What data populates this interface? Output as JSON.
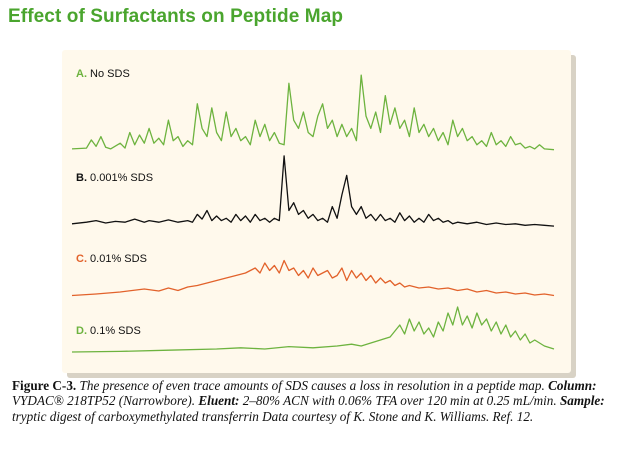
{
  "page": {
    "title": "Effect of Surfactants on Peptide Map"
  },
  "chart_data": {
    "type": "line",
    "xlabel": "",
    "ylabel": "",
    "x_range": [
      0,
      100
    ],
    "y_range": [
      0,
      1
    ],
    "grid": false,
    "legend": "none",
    "series": [
      {
        "name": "No SDS",
        "letter": "A.",
        "rest": "No SDS",
        "color": "#6db33f",
        "points": [
          [
            0,
            0.05
          ],
          [
            3,
            0.06
          ],
          [
            4,
            0.16
          ],
          [
            5,
            0.08
          ],
          [
            6,
            0.2
          ],
          [
            7,
            0.07
          ],
          [
            8,
            0.05
          ],
          [
            10,
            0.12
          ],
          [
            11,
            0.06
          ],
          [
            12,
            0.25
          ],
          [
            13,
            0.1
          ],
          [
            14,
            0.22
          ],
          [
            15,
            0.12
          ],
          [
            16,
            0.3
          ],
          [
            17,
            0.12
          ],
          [
            18,
            0.18
          ],
          [
            19,
            0.1
          ],
          [
            20,
            0.4
          ],
          [
            21,
            0.15
          ],
          [
            22,
            0.2
          ],
          [
            23,
            0.08
          ],
          [
            24,
            0.15
          ],
          [
            25,
            0.1
          ],
          [
            26,
            0.6
          ],
          [
            27,
            0.3
          ],
          [
            28,
            0.2
          ],
          [
            29,
            0.55
          ],
          [
            30,
            0.25
          ],
          [
            31,
            0.15
          ],
          [
            32,
            0.5
          ],
          [
            33,
            0.2
          ],
          [
            34,
            0.3
          ],
          [
            35,
            0.15
          ],
          [
            36,
            0.2
          ],
          [
            37,
            0.1
          ],
          [
            38,
            0.4
          ],
          [
            39,
            0.2
          ],
          [
            40,
            0.35
          ],
          [
            41,
            0.15
          ],
          [
            42,
            0.25
          ],
          [
            43,
            0.12
          ],
          [
            44,
            0.1
          ],
          [
            45,
            0.85
          ],
          [
            46,
            0.4
          ],
          [
            47,
            0.3
          ],
          [
            48,
            0.5
          ],
          [
            49,
            0.25
          ],
          [
            50,
            0.2
          ],
          [
            51,
            0.45
          ],
          [
            52,
            0.6
          ],
          [
            53,
            0.3
          ],
          [
            54,
            0.4
          ],
          [
            55,
            0.2
          ],
          [
            56,
            0.35
          ],
          [
            57,
            0.2
          ],
          [
            58,
            0.3
          ],
          [
            59,
            0.15
          ],
          [
            60,
            0.95
          ],
          [
            61,
            0.45
          ],
          [
            62,
            0.3
          ],
          [
            63,
            0.5
          ],
          [
            64,
            0.25
          ],
          [
            65,
            0.7
          ],
          [
            66,
            0.35
          ],
          [
            67,
            0.55
          ],
          [
            68,
            0.3
          ],
          [
            69,
            0.4
          ],
          [
            70,
            0.2
          ],
          [
            71,
            0.55
          ],
          [
            72,
            0.25
          ],
          [
            73,
            0.35
          ],
          [
            74,
            0.2
          ],
          [
            75,
            0.3
          ],
          [
            76,
            0.15
          ],
          [
            77,
            0.25
          ],
          [
            78,
            0.1
          ],
          [
            79,
            0.4
          ],
          [
            80,
            0.2
          ],
          [
            81,
            0.3
          ],
          [
            82,
            0.15
          ],
          [
            83,
            0.2
          ],
          [
            84,
            0.1
          ],
          [
            85,
            0.15
          ],
          [
            86,
            0.08
          ],
          [
            87,
            0.25
          ],
          [
            88,
            0.1
          ],
          [
            89,
            0.15
          ],
          [
            90,
            0.08
          ],
          [
            91,
            0.2
          ],
          [
            92,
            0.1
          ],
          [
            93,
            0.12
          ],
          [
            94,
            0.06
          ],
          [
            95,
            0.08
          ],
          [
            96,
            0.05
          ],
          [
            97,
            0.1
          ],
          [
            98,
            0.05
          ],
          [
            100,
            0.04
          ]
        ]
      },
      {
        "name": "0.001% SDS",
        "letter": "B.",
        "rest": "0.001% SDS",
        "color": "#111111",
        "points": [
          [
            0,
            0.08
          ],
          [
            3,
            0.1
          ],
          [
            5,
            0.12
          ],
          [
            7,
            0.09
          ],
          [
            9,
            0.11
          ],
          [
            11,
            0.1
          ],
          [
            13,
            0.14
          ],
          [
            15,
            0.1
          ],
          [
            16,
            0.12
          ],
          [
            18,
            0.1
          ],
          [
            20,
            0.13
          ],
          [
            22,
            0.1
          ],
          [
            24,
            0.12
          ],
          [
            25,
            0.1
          ],
          [
            26,
            0.2
          ],
          [
            27,
            0.14
          ],
          [
            28,
            0.25
          ],
          [
            29,
            0.12
          ],
          [
            30,
            0.18
          ],
          [
            31,
            0.12
          ],
          [
            32,
            0.15
          ],
          [
            33,
            0.1
          ],
          [
            34,
            0.2
          ],
          [
            35,
            0.12
          ],
          [
            36,
            0.18
          ],
          [
            37,
            0.1
          ],
          [
            38,
            0.2
          ],
          [
            39,
            0.12
          ],
          [
            40,
            0.15
          ],
          [
            41,
            0.1
          ],
          [
            42,
            0.15
          ],
          [
            43,
            0.12
          ],
          [
            44,
            0.95
          ],
          [
            45,
            0.25
          ],
          [
            46,
            0.35
          ],
          [
            47,
            0.2
          ],
          [
            48,
            0.25
          ],
          [
            49,
            0.15
          ],
          [
            50,
            0.2
          ],
          [
            51,
            0.12
          ],
          [
            52,
            0.15
          ],
          [
            53,
            0.1
          ],
          [
            54,
            0.3
          ],
          [
            55,
            0.15
          ],
          [
            56,
            0.45
          ],
          [
            57,
            0.7
          ],
          [
            58,
            0.3
          ],
          [
            59,
            0.2
          ],
          [
            60,
            0.3
          ],
          [
            61,
            0.15
          ],
          [
            62,
            0.2
          ],
          [
            63,
            0.12
          ],
          [
            64,
            0.2
          ],
          [
            65,
            0.12
          ],
          [
            66,
            0.15
          ],
          [
            67,
            0.1
          ],
          [
            68,
            0.22
          ],
          [
            69,
            0.12
          ],
          [
            70,
            0.18
          ],
          [
            71,
            0.1
          ],
          [
            72,
            0.15
          ],
          [
            73,
            0.1
          ],
          [
            74,
            0.2
          ],
          [
            75,
            0.12
          ],
          [
            76,
            0.15
          ],
          [
            77,
            0.1
          ],
          [
            78,
            0.12
          ],
          [
            79,
            0.08
          ],
          [
            80,
            0.1
          ],
          [
            82,
            0.08
          ],
          [
            84,
            0.1
          ],
          [
            86,
            0.07
          ],
          [
            88,
            0.09
          ],
          [
            90,
            0.07
          ],
          [
            92,
            0.08
          ],
          [
            94,
            0.06
          ],
          [
            96,
            0.07
          ],
          [
            98,
            0.06
          ],
          [
            100,
            0.05
          ]
        ]
      },
      {
        "name": "0.01% SDS",
        "letter": "C.",
        "rest": "0.01% SDS",
        "color": "#e2622b",
        "points": [
          [
            0,
            0.05
          ],
          [
            5,
            0.08
          ],
          [
            10,
            0.12
          ],
          [
            15,
            0.18
          ],
          [
            18,
            0.14
          ],
          [
            20,
            0.2
          ],
          [
            22,
            0.15
          ],
          [
            24,
            0.22
          ],
          [
            26,
            0.25
          ],
          [
            28,
            0.3
          ],
          [
            30,
            0.35
          ],
          [
            32,
            0.4
          ],
          [
            34,
            0.45
          ],
          [
            36,
            0.5
          ],
          [
            38,
            0.6
          ],
          [
            39,
            0.5
          ],
          [
            40,
            0.7
          ],
          [
            41,
            0.55
          ],
          [
            42,
            0.65
          ],
          [
            43,
            0.5
          ],
          [
            44,
            0.75
          ],
          [
            45,
            0.55
          ],
          [
            46,
            0.6
          ],
          [
            47,
            0.45
          ],
          [
            48,
            0.55
          ],
          [
            49,
            0.4
          ],
          [
            50,
            0.6
          ],
          [
            51,
            0.45
          ],
          [
            52,
            0.5
          ],
          [
            53,
            0.55
          ],
          [
            54,
            0.4
          ],
          [
            55,
            0.45
          ],
          [
            56,
            0.6
          ],
          [
            57,
            0.35
          ],
          [
            58,
            0.55
          ],
          [
            59,
            0.4
          ],
          [
            60,
            0.5
          ],
          [
            61,
            0.35
          ],
          [
            62,
            0.45
          ],
          [
            63,
            0.3
          ],
          [
            64,
            0.4
          ],
          [
            65,
            0.3
          ],
          [
            66,
            0.35
          ],
          [
            67,
            0.25
          ],
          [
            68,
            0.3
          ],
          [
            69,
            0.22
          ],
          [
            70,
            0.25
          ],
          [
            72,
            0.2
          ],
          [
            74,
            0.22
          ],
          [
            76,
            0.18
          ],
          [
            78,
            0.2
          ],
          [
            80,
            0.15
          ],
          [
            82,
            0.18
          ],
          [
            84,
            0.12
          ],
          [
            86,
            0.15
          ],
          [
            88,
            0.1
          ],
          [
            90,
            0.12
          ],
          [
            92,
            0.08
          ],
          [
            94,
            0.1
          ],
          [
            96,
            0.06
          ],
          [
            98,
            0.08
          ],
          [
            100,
            0.05
          ]
        ]
      },
      {
        "name": "0.1% SDS",
        "letter": "D.",
        "rest": "0.1% SDS",
        "color": "#6db33f",
        "points": [
          [
            0,
            0.05
          ],
          [
            10,
            0.06
          ],
          [
            20,
            0.08
          ],
          [
            30,
            0.1
          ],
          [
            35,
            0.12
          ],
          [
            40,
            0.1
          ],
          [
            45,
            0.14
          ],
          [
            50,
            0.12
          ],
          [
            55,
            0.15
          ],
          [
            58,
            0.18
          ],
          [
            60,
            0.15
          ],
          [
            62,
            0.2
          ],
          [
            64,
            0.25
          ],
          [
            66,
            0.3
          ],
          [
            68,
            0.5
          ],
          [
            69,
            0.35
          ],
          [
            70,
            0.6
          ],
          [
            71,
            0.4
          ],
          [
            72,
            0.55
          ],
          [
            73,
            0.35
          ],
          [
            74,
            0.45
          ],
          [
            75,
            0.3
          ],
          [
            76,
            0.55
          ],
          [
            77,
            0.4
          ],
          [
            78,
            0.7
          ],
          [
            79,
            0.5
          ],
          [
            80,
            0.8
          ],
          [
            81,
            0.5
          ],
          [
            82,
            0.65
          ],
          [
            83,
            0.45
          ],
          [
            84,
            0.7
          ],
          [
            85,
            0.5
          ],
          [
            86,
            0.6
          ],
          [
            87,
            0.4
          ],
          [
            88,
            0.55
          ],
          [
            89,
            0.35
          ],
          [
            90,
            0.5
          ],
          [
            91,
            0.3
          ],
          [
            92,
            0.4
          ],
          [
            93,
            0.25
          ],
          [
            94,
            0.35
          ],
          [
            95,
            0.2
          ],
          [
            96,
            0.25
          ],
          [
            98,
            0.15
          ],
          [
            100,
            0.1
          ]
        ]
      }
    ]
  },
  "caption": {
    "fig_label": "Figure C-3.",
    "text1": " The presence of even trace amounts of SDS causes a loss in resolution in a peptide map. ",
    "column_label": "Column:",
    "column_value": " VYDAC® 218TP52 (Narrowbore). ",
    "eluent_label": "Eluent:",
    "eluent_value": " 2–80% ACN with 0.06% TFA over 120 min at 0.25 mL/min. ",
    "sample_label": "Sample:",
    "sample_value": " tryptic digest of carboxymethylated transferrin Data courtesy of K. Stone and K. Williams. Ref. 12."
  }
}
